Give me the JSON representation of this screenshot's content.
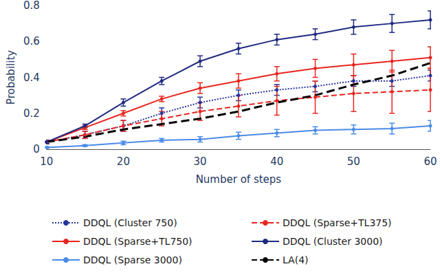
{
  "chart_data": {
    "type": "line",
    "x_label": "Number of steps",
    "y_label": "Probability",
    "x": [
      10,
      15,
      20,
      25,
      30,
      35,
      40,
      45,
      50,
      55,
      60
    ],
    "xlim": [
      10,
      60
    ],
    "xticks": [
      10,
      20,
      30,
      40,
      50,
      60
    ],
    "ylim": [
      0,
      0.8
    ],
    "yticks": [
      0,
      0.2,
      0.4,
      0.6,
      0.8
    ],
    "grid": false,
    "legend": "bottom",
    "series": [
      {
        "name": "DDQL (Cluster 750)",
        "color": "#27339b",
        "line_style": "dotted",
        "marker": "circle",
        "values": [
          0.04,
          0.08,
          0.13,
          0.2,
          0.26,
          0.3,
          0.33,
          0.35,
          0.38,
          0.38,
          0.41
        ],
        "errors": [
          0.01,
          0.02,
          0.03,
          0.03,
          0.03,
          0.03,
          0.03,
          0.03,
          0.03,
          0.03,
          0.03
        ]
      },
      {
        "name": "DDQL (Sparse+TL375)",
        "color": "#e8251f",
        "line_style": "dashed",
        "marker": "circle",
        "values": [
          0.04,
          0.08,
          0.13,
          0.17,
          0.21,
          0.24,
          0.27,
          0.29,
          0.31,
          0.32,
          0.33
        ],
        "errors": [
          0.01,
          0.02,
          0.03,
          0.04,
          0.05,
          0.06,
          0.08,
          0.09,
          0.1,
          0.12,
          0.12
        ]
      },
      {
        "name": "DDQL (Sparse+TL750)",
        "color": "#e8251f",
        "line_style": "solid",
        "marker": "circle",
        "values": [
          0.04,
          0.12,
          0.2,
          0.28,
          0.34,
          0.38,
          0.42,
          0.45,
          0.47,
          0.49,
          0.51
        ],
        "errors": [
          0.01,
          0.01,
          0.015,
          0.015,
          0.03,
          0.04,
          0.04,
          0.05,
          0.06,
          0.06,
          0.06
        ]
      },
      {
        "name": "DDQL (Cluster 3000)",
        "color": "#1f2a80",
        "line_style": "solid",
        "marker": "circle",
        "values": [
          0.04,
          0.13,
          0.26,
          0.38,
          0.49,
          0.56,
          0.61,
          0.64,
          0.68,
          0.7,
          0.72
        ],
        "errors": [
          0.01,
          0.01,
          0.02,
          0.02,
          0.03,
          0.03,
          0.03,
          0.03,
          0.04,
          0.05,
          0.05
        ]
      },
      {
        "name": "DDQL (Sparse 3000)",
        "color": "#4a8ae8",
        "line_style": "solid",
        "marker": "circle",
        "values": [
          0.01,
          0.02,
          0.035,
          0.05,
          0.055,
          0.075,
          0.09,
          0.105,
          0.11,
          0.115,
          0.13
        ],
        "errors": [
          0.005,
          0.005,
          0.01,
          0.01,
          0.015,
          0.02,
          0.02,
          0.02,
          0.025,
          0.03,
          0.03
        ]
      },
      {
        "name": "LA(4)",
        "color": "#000000",
        "line_style": "dashed",
        "marker": "none",
        "values": [
          0.04,
          0.07,
          0.11,
          0.14,
          0.17,
          0.21,
          0.26,
          0.3,
          0.36,
          0.41,
          0.48
        ]
      }
    ]
  }
}
